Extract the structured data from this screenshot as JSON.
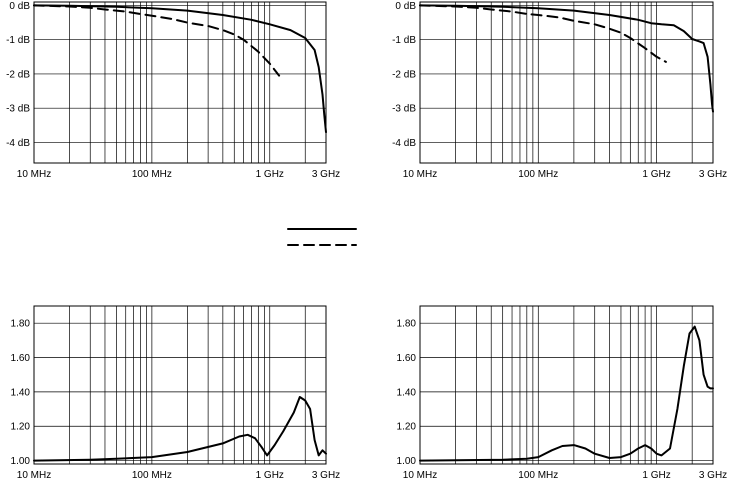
{
  "legend": {
    "position": "center",
    "entries": [
      {
        "style": "solid"
      },
      {
        "style": "dashed"
      }
    ]
  },
  "chart_data": [
    {
      "type": "line",
      "x_scale": "log",
      "xlim": [
        10,
        3000
      ],
      "ylim": [
        -4.6,
        0.1
      ],
      "x_ticks": [
        {
          "value": 10,
          "label": "10 MHz"
        },
        {
          "value": 100,
          "label": "100 MHz"
        },
        {
          "value": 1000,
          "label": "1 GHz"
        },
        {
          "value": 3000,
          "label": "3 GHz"
        }
      ],
      "y_ticks": [
        {
          "value": 0,
          "label": "0 dB"
        },
        {
          "value": -1,
          "label": "-1 dB"
        },
        {
          "value": -2,
          "label": "-2 dB"
        },
        {
          "value": -3,
          "label": "-3 dB"
        },
        {
          "value": -4,
          "label": "-4 dB"
        }
      ],
      "grid": true,
      "series": [
        {
          "style": "solid",
          "x": [
            10,
            20,
            50,
            100,
            200,
            400,
            700,
            1000,
            1500,
            2000,
            2400,
            2600,
            2800,
            2900,
            3000
          ],
          "y": [
            0,
            -0.01,
            -0.04,
            -0.08,
            -0.15,
            -0.28,
            -0.42,
            -0.55,
            -0.72,
            -0.95,
            -1.3,
            -1.8,
            -2.6,
            -3.2,
            -3.7
          ]
        },
        {
          "style": "dashed",
          "x": [
            10,
            20,
            30,
            40,
            60,
            80,
            100,
            150,
            200,
            300,
            400,
            500,
            600,
            800,
            1000,
            1200
          ],
          "y": [
            0,
            -0.03,
            -0.07,
            -0.12,
            -0.18,
            -0.25,
            -0.3,
            -0.4,
            -0.5,
            -0.6,
            -0.72,
            -0.85,
            -1.0,
            -1.35,
            -1.7,
            -2.05
          ]
        }
      ]
    },
    {
      "type": "line",
      "x_scale": "log",
      "xlim": [
        10,
        3000
      ],
      "ylim": [
        -4.6,
        0.1
      ],
      "x_ticks": [
        {
          "value": 10,
          "label": "10 MHz"
        },
        {
          "value": 100,
          "label": "100 MHz"
        },
        {
          "value": 1000,
          "label": "1 GHz"
        },
        {
          "value": 3000,
          "label": "3 GHz"
        }
      ],
      "y_ticks": [
        {
          "value": 0,
          "label": "0 dB"
        },
        {
          "value": -1,
          "label": "-1 dB"
        },
        {
          "value": -2,
          "label": "-2 dB"
        },
        {
          "value": -3,
          "label": "-3 dB"
        },
        {
          "value": -4,
          "label": "-4 dB"
        }
      ],
      "grid": true,
      "series": [
        {
          "style": "solid",
          "x": [
            10,
            20,
            50,
            100,
            200,
            400,
            700,
            900,
            1100,
            1400,
            1700,
            2000,
            2300,
            2500,
            2700,
            2850,
            2950,
            3000
          ],
          "y": [
            0,
            -0.01,
            -0.04,
            -0.08,
            -0.15,
            -0.28,
            -0.42,
            -0.52,
            -0.55,
            -0.58,
            -0.75,
            -0.98,
            -1.05,
            -1.1,
            -1.5,
            -2.3,
            -2.9,
            -3.1
          ]
        },
        {
          "style": "dashed",
          "x": [
            10,
            20,
            30,
            40,
            60,
            80,
            100,
            150,
            200,
            300,
            400,
            500,
            600,
            800,
            1000,
            1200
          ],
          "y": [
            0,
            -0.03,
            -0.07,
            -0.12,
            -0.18,
            -0.25,
            -0.28,
            -0.35,
            -0.45,
            -0.55,
            -0.68,
            -0.8,
            -0.95,
            -1.25,
            -1.5,
            -1.65
          ]
        }
      ]
    },
    {
      "type": "line",
      "x_scale": "log",
      "xlim": [
        10,
        3000
      ],
      "ylim": [
        0.98,
        1.9
      ],
      "x_ticks": [
        {
          "value": 10,
          "label": "10 MHz"
        },
        {
          "value": 100,
          "label": "100 MHz"
        },
        {
          "value": 1000,
          "label": "1 GHz"
        },
        {
          "value": 3000,
          "label": "3 GHz"
        }
      ],
      "y_ticks": [
        {
          "value": 1.0,
          "label": "1.00"
        },
        {
          "value": 1.2,
          "label": "1.20"
        },
        {
          "value": 1.4,
          "label": "1.40"
        },
        {
          "value": 1.6,
          "label": "1.60"
        },
        {
          "value": 1.8,
          "label": "1.80"
        }
      ],
      "grid": true,
      "series": [
        {
          "style": "solid",
          "x": [
            10,
            30,
            50,
            100,
            200,
            400,
            550,
            650,
            750,
            850,
            950,
            1100,
            1300,
            1600,
            1800,
            2000,
            2200,
            2400,
            2600,
            2800,
            3000
          ],
          "y": [
            1.0,
            1.005,
            1.01,
            1.02,
            1.05,
            1.1,
            1.14,
            1.15,
            1.13,
            1.08,
            1.03,
            1.09,
            1.17,
            1.28,
            1.37,
            1.35,
            1.3,
            1.12,
            1.03,
            1.06,
            1.04
          ]
        }
      ]
    },
    {
      "type": "line",
      "x_scale": "log",
      "xlim": [
        10,
        3000
      ],
      "ylim": [
        0.98,
        1.9
      ],
      "x_ticks": [
        {
          "value": 10,
          "label": "10 MHz"
        },
        {
          "value": 100,
          "label": "100 MHz"
        },
        {
          "value": 1000,
          "label": "1 GHz"
        },
        {
          "value": 3000,
          "label": "3 GHz"
        }
      ],
      "y_ticks": [
        {
          "value": 1.0,
          "label": "1.00"
        },
        {
          "value": 1.2,
          "label": "1.20"
        },
        {
          "value": 1.4,
          "label": "1.40"
        },
        {
          "value": 1.6,
          "label": "1.60"
        },
        {
          "value": 1.8,
          "label": "1.80"
        }
      ],
      "grid": true,
      "series": [
        {
          "style": "solid",
          "x": [
            10,
            50,
            80,
            100,
            130,
            160,
            200,
            250,
            300,
            400,
            500,
            600,
            700,
            800,
            900,
            1000,
            1100,
            1300,
            1500,
            1700,
            1900,
            2100,
            2300,
            2500,
            2700,
            2850,
            3000
          ],
          "y": [
            1.0,
            1.005,
            1.01,
            1.02,
            1.06,
            1.085,
            1.09,
            1.07,
            1.04,
            1.015,
            1.02,
            1.04,
            1.07,
            1.09,
            1.07,
            1.04,
            1.03,
            1.07,
            1.3,
            1.55,
            1.74,
            1.78,
            1.7,
            1.5,
            1.43,
            1.42,
            1.42
          ]
        }
      ]
    }
  ]
}
